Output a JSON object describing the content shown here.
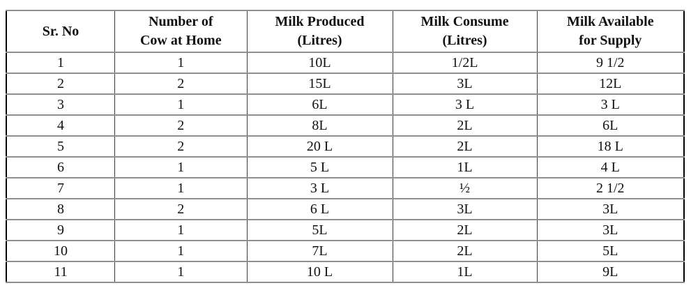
{
  "table": {
    "headers": [
      {
        "lines": [
          "Sr. No"
        ]
      },
      {
        "lines": [
          "Number of",
          "Cow at Home"
        ]
      },
      {
        "lines": [
          "Milk Produced",
          "(Litres)"
        ]
      },
      {
        "lines": [
          "Milk Consume",
          "(Litres)"
        ]
      },
      {
        "lines": [
          "Milk Available",
          "for Supply"
        ]
      }
    ],
    "rows": [
      [
        "1",
        "1",
        "10L",
        "1/2L",
        "9 1/2"
      ],
      [
        "2",
        "2",
        "15L",
        "3L",
        "12L"
      ],
      [
        "3",
        "1",
        "6L",
        "3 L",
        "3 L"
      ],
      [
        "4",
        "2",
        "8L",
        "2L",
        "6L"
      ],
      [
        "5",
        "2",
        "20 L",
        "2L",
        "18 L"
      ],
      [
        "6",
        "1",
        "5 L",
        "1L",
        "4 L"
      ],
      [
        "7",
        "1",
        "3 L",
        "½",
        "2 1/2"
      ],
      [
        "8",
        "2",
        "6 L",
        "3L",
        "3L"
      ],
      [
        "9",
        "1",
        "5L",
        "2L",
        "3L"
      ],
      [
        "10",
        "1",
        "7L",
        "2L",
        "5L"
      ],
      [
        "11",
        "1",
        "10 L",
        "1L",
        "9L"
      ]
    ]
  },
  "colors": {
    "background": "#ffffff",
    "text": "#111111",
    "border_outer": "#000000",
    "border_inner_horizontal": "#8f8f8f",
    "border_inner_vertical": "#3a3a3a"
  }
}
